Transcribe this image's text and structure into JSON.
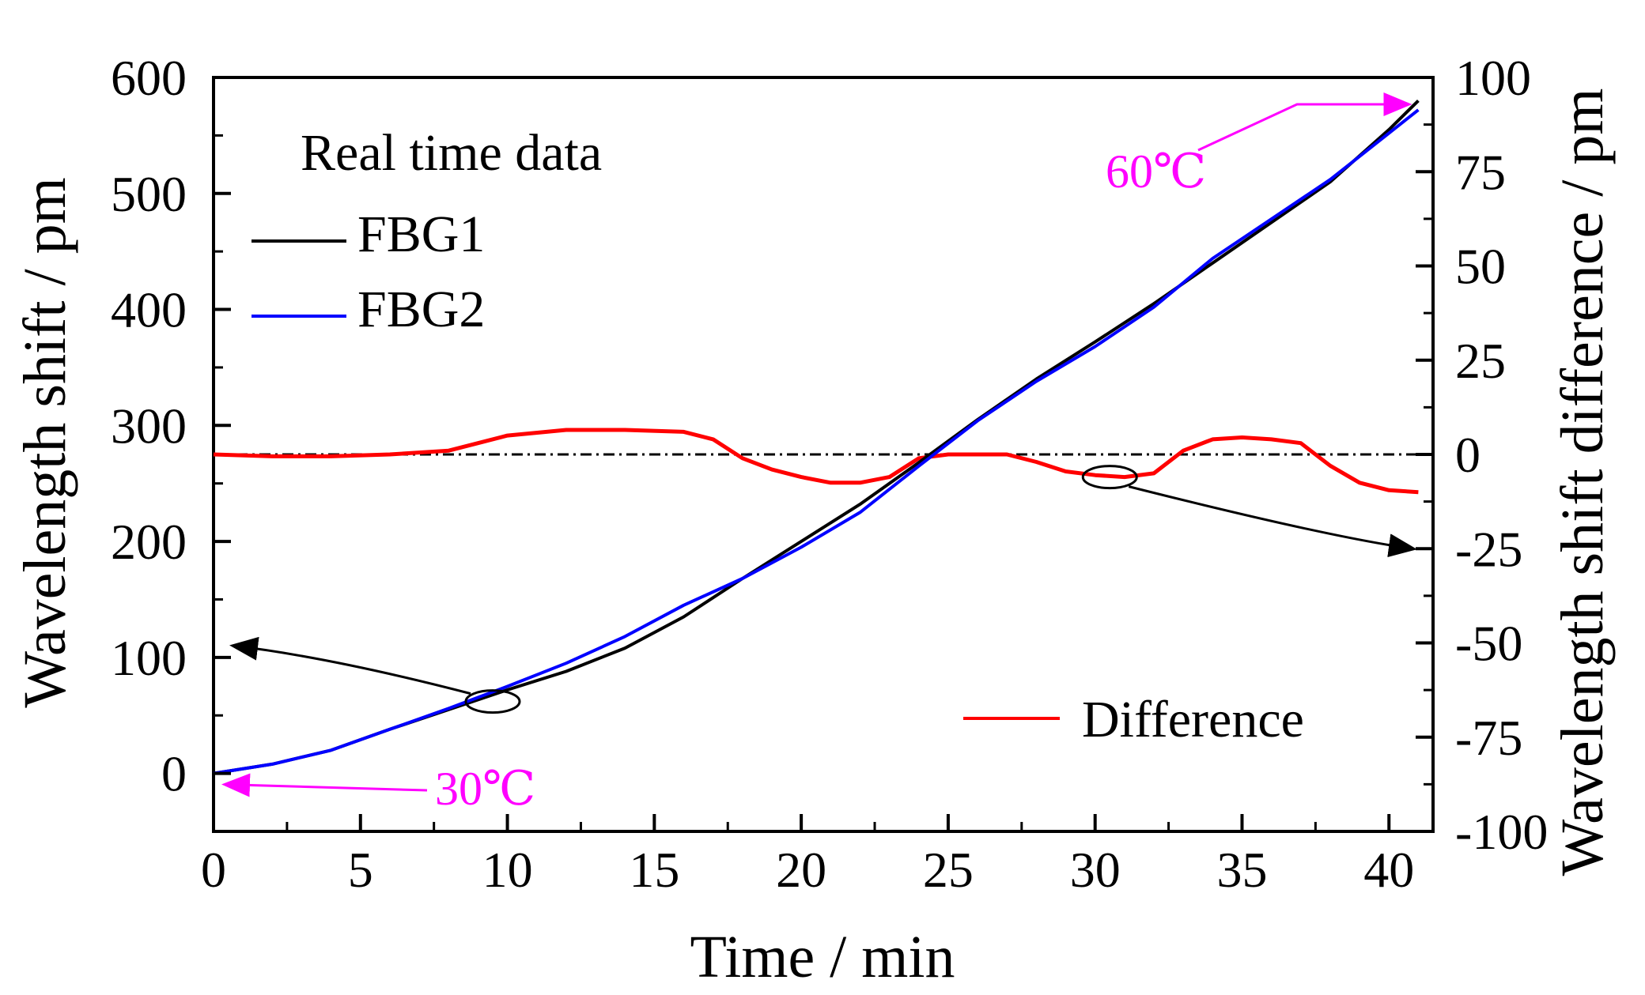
{
  "chart_data": {
    "type": "line",
    "xlabel": "Time / min",
    "ylabel_left": "Wavelength shift / pm",
    "ylabel_right": "Wavelength shift difference / pm",
    "xlim": [
      0,
      41.5
    ],
    "ylim_left": [
      -50,
      600
    ],
    "ylim_right": [
      -100,
      100
    ],
    "x_ticks": [
      0,
      5,
      10,
      15,
      20,
      25,
      30,
      35,
      40
    ],
    "y_left_ticks": [
      0,
      100,
      200,
      300,
      400,
      500,
      600
    ],
    "y_right_ticks": [
      -100,
      -75,
      -50,
      -25,
      0,
      25,
      50,
      75,
      100
    ],
    "grid": false,
    "legend": {
      "title": "Real time data",
      "placement_left": "top-left",
      "placement_right": "bottom-right"
    },
    "series": [
      {
        "name": "FBG1",
        "axis": "left",
        "color": "#000000",
        "x": [
          0,
          2,
          4,
          6,
          8,
          10,
          12,
          14,
          16,
          18,
          20,
          22,
          24,
          26,
          28,
          30,
          32,
          34,
          36,
          38,
          40,
          41
        ],
        "values": [
          0,
          8,
          20,
          38,
          55,
          72,
          88,
          108,
          135,
          168,
          200,
          232,
          268,
          305,
          340,
          372,
          405,
          440,
          475,
          510,
          555,
          580
        ]
      },
      {
        "name": "FBG2",
        "axis": "left",
        "color": "#0000ff",
        "x": [
          0,
          2,
          4,
          6,
          8,
          10,
          12,
          14,
          16,
          18,
          20,
          22,
          24,
          26,
          28,
          30,
          32,
          34,
          36,
          38,
          40,
          41
        ],
        "values": [
          0,
          8,
          20,
          38,
          56,
          75,
          95,
          118,
          145,
          168,
          195,
          225,
          265,
          304,
          338,
          368,
          402,
          444,
          478,
          512,
          552,
          572
        ]
      },
      {
        "name": "Difference",
        "axis": "right",
        "color": "#ff0000",
        "x": [
          0,
          2,
          4,
          6,
          8,
          9,
          10,
          12,
          14,
          16,
          17,
          18,
          19,
          20,
          21,
          22,
          23,
          24,
          25,
          26,
          27,
          28,
          29,
          30,
          31,
          32,
          33,
          34,
          35,
          36,
          37,
          38,
          39,
          40,
          41
        ],
        "values": [
          0,
          -0.5,
          -0.5,
          0,
          1,
          3,
          5,
          6.5,
          6.5,
          6,
          4,
          -1,
          -4,
          -6,
          -7.5,
          -7.5,
          -6,
          -1,
          0,
          0,
          0,
          -2,
          -4.5,
          -5.5,
          -6,
          -5,
          1,
          4,
          4.5,
          4,
          3,
          -3,
          -7.5,
          -9.5,
          -10
        ]
      }
    ],
    "reference_line": {
      "axis": "right",
      "value": 0,
      "style": "dash-dot"
    },
    "annotations": [
      {
        "text": "30℃",
        "x": 0,
        "y_left": 0,
        "color": "#ff00ff"
      },
      {
        "text": "60℃",
        "x": 41,
        "y_left": 580,
        "color": "#ff00ff"
      }
    ],
    "callouts": [
      {
        "target_axis": "left",
        "circle_at": {
          "x": 9.5,
          "y_left": 62
        }
      },
      {
        "target_axis": "right",
        "circle_at": {
          "x": 30.5,
          "y_right": -6
        }
      }
    ]
  }
}
